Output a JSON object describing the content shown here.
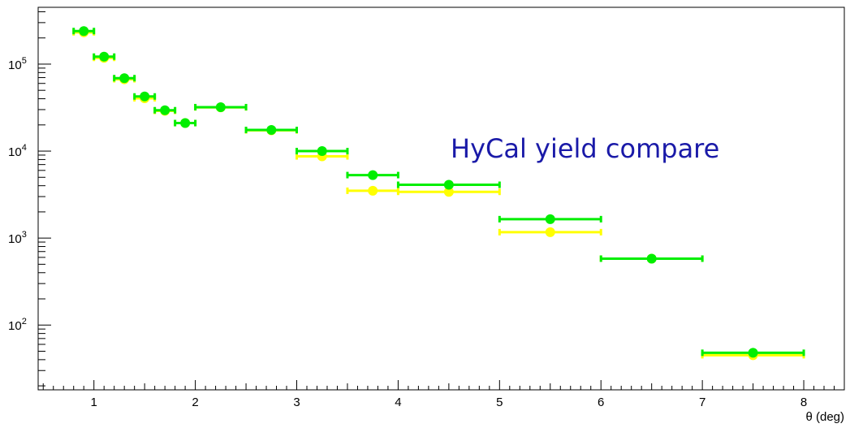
{
  "chart_data": {
    "type": "scatter",
    "title": "",
    "xlabel": "θ (deg)",
    "ylabel": "",
    "xlim": [
      0.45,
      8.4
    ],
    "ylim": [
      18,
      450000
    ],
    "yscale": "log",
    "grid": false,
    "legend": "none",
    "x_ticks": [
      "1",
      "2",
      "3",
      "4",
      "5",
      "6",
      "7",
      "8"
    ],
    "y_ticks": [
      {
        "base": "10",
        "exp": "2"
      },
      {
        "base": "10",
        "exp": "3"
      },
      {
        "base": "10",
        "exp": "4"
      },
      {
        "base": "10",
        "exp": "5"
      }
    ],
    "annotation": "HyCal yield compare",
    "series": [
      {
        "color": "#ffff00",
        "points": [
          {
            "x": 0.9,
            "xerr": 0.1,
            "y": 232000
          },
          {
            "x": 1.1,
            "xerr": 0.1,
            "y": 118000
          },
          {
            "x": 1.3,
            "xerr": 0.1,
            "y": 67000
          },
          {
            "x": 1.5,
            "xerr": 0.1,
            "y": 40500
          },
          {
            "x": 1.7,
            "xerr": 0.1,
            "y": 29000
          },
          {
            "x": 1.9,
            "xerr": 0.1,
            "y": 21000
          },
          {
            "x": 2.25,
            "xerr": 0.25,
            "y": 31800
          },
          {
            "x": 2.75,
            "xerr": 0.25,
            "y": 17300
          },
          {
            "x": 3.25,
            "xerr": 0.25,
            "y": 8700
          },
          {
            "x": 3.75,
            "xerr": 0.25,
            "y": 3500
          },
          {
            "x": 4.5,
            "xerr": 0.5,
            "y": 3400
          },
          {
            "x": 5.5,
            "xerr": 0.5,
            "y": 1170
          },
          {
            "x": 6.5,
            "xerr": 0.5,
            "y": 580
          },
          {
            "x": 7.5,
            "xerr": 0.5,
            "y": 45
          }
        ]
      },
      {
        "color": "#00ee00",
        "points": [
          {
            "x": 0.9,
            "xerr": 0.1,
            "y": 240000
          },
          {
            "x": 1.1,
            "xerr": 0.1,
            "y": 122000
          },
          {
            "x": 1.3,
            "xerr": 0.1,
            "y": 69000
          },
          {
            "x": 1.5,
            "xerr": 0.1,
            "y": 42500
          },
          {
            "x": 1.7,
            "xerr": 0.1,
            "y": 29500
          },
          {
            "x": 1.9,
            "xerr": 0.1,
            "y": 21000
          },
          {
            "x": 2.25,
            "xerr": 0.25,
            "y": 32000
          },
          {
            "x": 2.75,
            "xerr": 0.25,
            "y": 17500
          },
          {
            "x": 3.25,
            "xerr": 0.25,
            "y": 10000
          },
          {
            "x": 3.75,
            "xerr": 0.25,
            "y": 5300
          },
          {
            "x": 4.5,
            "xerr": 0.5,
            "y": 4100
          },
          {
            "x": 5.5,
            "xerr": 0.5,
            "y": 1650
          },
          {
            "x": 6.5,
            "xerr": 0.5,
            "y": 580
          },
          {
            "x": 7.5,
            "xerr": 0.5,
            "y": 48
          }
        ]
      }
    ]
  }
}
